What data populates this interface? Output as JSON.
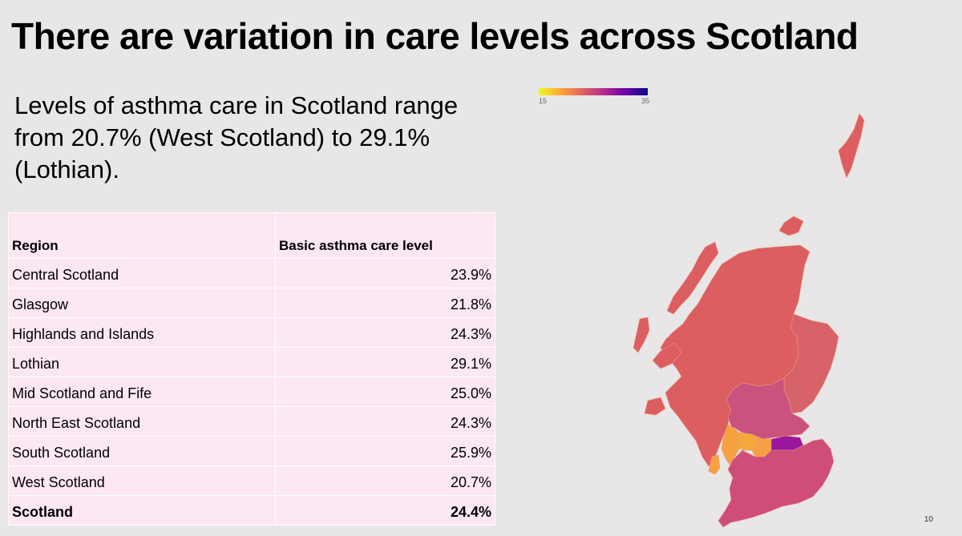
{
  "slide": {
    "title": "There are variation in care levels across Scotland",
    "summary": "Levels of asthma care in Scotland range from 20.7% (West Scotland) to 29.1% (Lothian).",
    "page_number": "10"
  },
  "table": {
    "headers": [
      "Region",
      "Basic asthma care level"
    ],
    "rows": [
      {
        "region": "Central Scotland",
        "value": "23.9%"
      },
      {
        "region": "Glasgow",
        "value": "21.8%"
      },
      {
        "region": "Highlands and Islands",
        "value": "24.3%"
      },
      {
        "region": "Lothian",
        "value": "29.1%"
      },
      {
        "region": "Mid Scotland and Fife",
        "value": "25.0%"
      },
      {
        "region": "North East Scotland",
        "value": "24.3%"
      },
      {
        "region": "South Scotland",
        "value": "25.9%"
      },
      {
        "region": "West Scotland",
        "value": "20.7%"
      }
    ],
    "total": {
      "region": "Scotland",
      "value": "24.4%"
    }
  },
  "legend": {
    "min_label": "15",
    "max_label": "35",
    "min": 15,
    "max": 35,
    "colors": [
      "#f0f921",
      "#fca636",
      "#e16462",
      "#b12a90",
      "#6a00a8",
      "#0d0887"
    ]
  },
  "map": {
    "region_colors": {
      "highlands": "#dd5e60",
      "north_east": "#d8626a",
      "mid_fife": "#c9527e",
      "west": "#f5a13f",
      "glasgow": "#f6a83a",
      "central": "#f4a145",
      "lothian": "#9b179e",
      "south": "#cf4d79"
    }
  }
}
